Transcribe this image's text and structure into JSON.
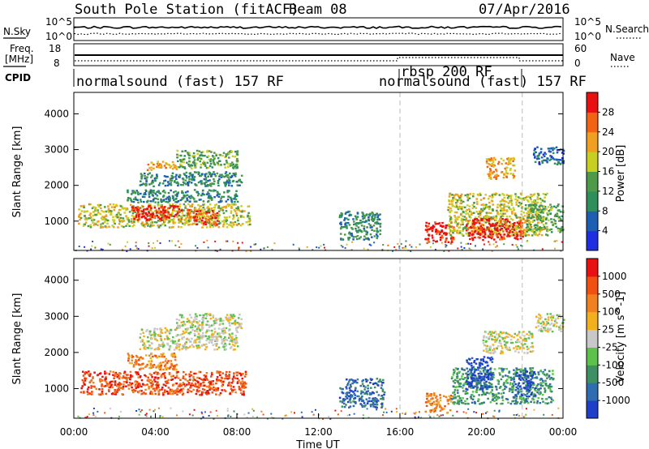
{
  "header": {
    "station": "South Pole Station (fitACF)",
    "beam": "Beam 08",
    "date": "07/Apr/2016"
  },
  "top_panels": {
    "nsky_label": "N.Sky",
    "nsky_ticks": [
      "10^5",
      "10^0"
    ],
    "nsearch_label": "N.Search",
    "nsearch_ticks": [
      "10^5",
      "10^0"
    ],
    "freq_label_1": "Freq.",
    "freq_label_2": "[MHz]",
    "freq_ticks": [
      "18",
      "8"
    ],
    "nave_label": "Nave",
    "nave_ticks": [
      "60",
      "0"
    ],
    "cpid_label": "CPID",
    "cpid_segments": [
      {
        "label": "normalsound (fast) 157 RF",
        "start_h": 0,
        "end_h": 16
      },
      {
        "label": "rbsp 200 RF",
        "start_h": 16,
        "end_h": 22
      },
      {
        "label": "normalsound (fast) 157 RF",
        "start_h": 16,
        "end_h": 22
      }
    ]
  },
  "chart_data": [
    {
      "type": "heatmap",
      "title": "",
      "xlabel": "Time UT",
      "ylabel": "Slant Range [km]",
      "xlim": [
        0,
        24
      ],
      "ylim": [
        180,
        4600
      ],
      "x_ticks": [
        "00:00",
        "04:00",
        "08:00",
        "12:00",
        "16:00",
        "20:00",
        "00:00"
      ],
      "y_ticks": [
        1000,
        2000,
        3000,
        4000
      ],
      "colorbar_label": "Power [dB]",
      "colorbar_ticks": [
        "4",
        "8",
        "12",
        "16",
        "20",
        "24",
        "28"
      ],
      "colorbar_colors": [
        "#1f2ee0",
        "#1e5fb4",
        "#2f8f5a",
        "#4f9a48",
        "#c9cf20",
        "#f0a020",
        "#f06414",
        "#e81010"
      ],
      "regions": [
        {
          "t0": 0.2,
          "t1": 8.6,
          "r0": 850,
          "r1": 1500,
          "level": 4
        },
        {
          "t0": 2.8,
          "t1": 5.3,
          "r0": 1050,
          "r1": 1450,
          "level": 7
        },
        {
          "t0": 5.5,
          "t1": 7.0,
          "r0": 900,
          "r1": 1350,
          "level": 6
        },
        {
          "t0": 2.5,
          "t1": 8.0,
          "r0": 1550,
          "r1": 1900,
          "level": 2
        },
        {
          "t0": 3.2,
          "t1": 8.2,
          "r0": 2000,
          "r1": 2400,
          "level": 2
        },
        {
          "t0": 3.5,
          "t1": 5.0,
          "r0": 2450,
          "r1": 2700,
          "level": 5
        },
        {
          "t0": 5.0,
          "t1": 8.0,
          "r0": 2500,
          "r1": 3000,
          "level": 3
        },
        {
          "t0": 13.0,
          "t1": 15.0,
          "r0": 500,
          "r1": 1300,
          "level": 2
        },
        {
          "t0": 17.2,
          "t1": 18.6,
          "r0": 400,
          "r1": 1000,
          "level": 7
        },
        {
          "t0": 18.3,
          "t1": 23.2,
          "r0": 600,
          "r1": 1800,
          "level": 4
        },
        {
          "t0": 19.2,
          "t1": 22.0,
          "r0": 500,
          "r1": 1100,
          "level": 7
        },
        {
          "t0": 22.2,
          "t1": 24.0,
          "r0": 700,
          "r1": 1500,
          "level": 3
        },
        {
          "t0": 20.2,
          "t1": 21.6,
          "r0": 2200,
          "r1": 2800,
          "level": 5
        },
        {
          "t0": 22.5,
          "t1": 24.0,
          "r0": 2600,
          "r1": 3100,
          "level": 1
        }
      ]
    },
    {
      "type": "heatmap",
      "title": "",
      "xlabel": "Time UT",
      "ylabel": "Slant Range [km]",
      "xlim": [
        0,
        24
      ],
      "ylim": [
        180,
        4600
      ],
      "x_ticks": [
        "00:00",
        "04:00",
        "08:00",
        "12:00",
        "16:00",
        "20:00",
        "00:00"
      ],
      "y_ticks": [
        1000,
        2000,
        3000,
        4000
      ],
      "colorbar_label": "Velocity [m s^-1]",
      "colorbar_ticks": [
        "1000",
        "500",
        "100",
        "25",
        "-25",
        "-100",
        "-500",
        "-1000"
      ],
      "colorbar_colors": [
        "#1f3fc8",
        "#2f6cb0",
        "#3e8f62",
        "#5cc24a",
        "#c8c8c8",
        "#f0b020",
        "#f08020",
        "#f05010",
        "#e81010"
      ],
      "regions": [
        {
          "t0": 0.3,
          "t1": 8.4,
          "r0": 850,
          "r1": 1500,
          "level": 7
        },
        {
          "t0": 2.6,
          "t1": 5.0,
          "r0": 1550,
          "r1": 2000,
          "level": 6
        },
        {
          "t0": 3.2,
          "t1": 8.0,
          "r0": 2100,
          "r1": 2700,
          "level": 4
        },
        {
          "t0": 5.0,
          "t1": 8.2,
          "r0": 2700,
          "r1": 3100,
          "level": 4
        },
        {
          "t0": 13.0,
          "t1": 15.2,
          "r0": 500,
          "r1": 1300,
          "level": 1
        },
        {
          "t0": 17.2,
          "t1": 18.5,
          "r0": 350,
          "r1": 900,
          "level": 6
        },
        {
          "t0": 18.5,
          "t1": 23.5,
          "r0": 600,
          "r1": 1600,
          "level": 2
        },
        {
          "t0": 19.2,
          "t1": 20.5,
          "r0": 1000,
          "r1": 1900,
          "level": 0
        },
        {
          "t0": 21.6,
          "t1": 22.6,
          "r0": 800,
          "r1": 1500,
          "level": 0
        },
        {
          "t0": 20.0,
          "t1": 22.5,
          "r0": 2000,
          "r1": 2600,
          "level": 4
        },
        {
          "t0": 22.6,
          "t1": 24.0,
          "r0": 2600,
          "r1": 3100,
          "level": 4
        }
      ]
    }
  ]
}
